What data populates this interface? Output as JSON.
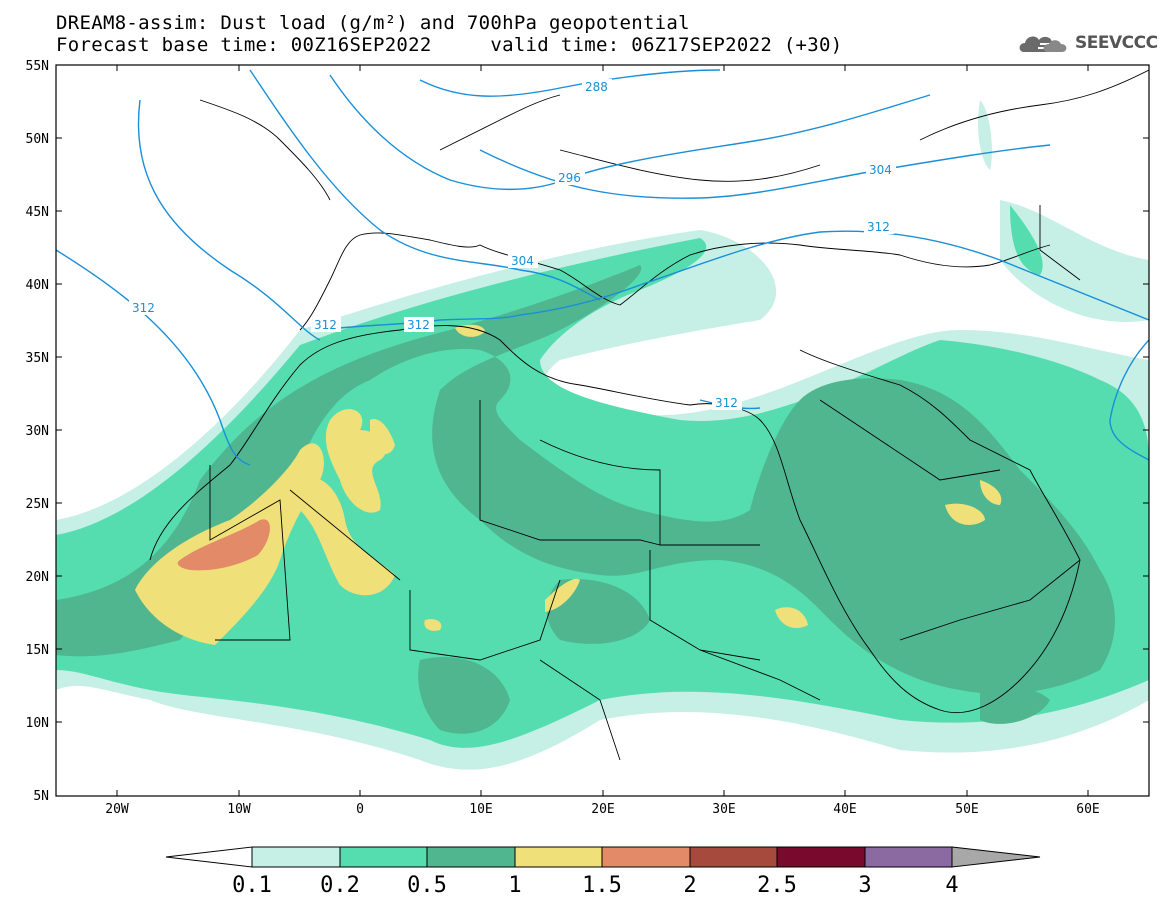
{
  "title_line1": "DREAM8-assim: Dust load (g/m²) and 700hPa geopotential",
  "title_line2": "Forecast base time: 00Z16SEP2022     valid time: 06Z17SEP2022 (+30)",
  "logo_text": "SEEVCCC",
  "map": {
    "lat_labels": [
      "55N",
      "50N",
      "45N",
      "40N",
      "35N",
      "30N",
      "25N",
      "20N",
      "15N",
      "10N",
      "5N"
    ],
    "lon_labels": [
      "20W",
      "10W",
      "0",
      "10E",
      "20E",
      "30E",
      "40E",
      "50E",
      "60E"
    ],
    "contour_labels": [
      "288",
      "296",
      "304",
      "304",
      "312",
      "312",
      "312",
      "312",
      "312"
    ],
    "contour_color": "#1a8fd8"
  },
  "colorbar": {
    "levels": [
      "0.1",
      "0.2",
      "0.5",
      "1",
      "1.5",
      "2",
      "2.5",
      "3",
      "4"
    ],
    "colors": [
      "#ffffff",
      "#c6efe6",
      "#55ddb0",
      "#4fb690",
      "#f0e07a",
      "#e38a68",
      "#a74a3e",
      "#7a0a2d",
      "#8a6aa0",
      "#a8a8a8"
    ]
  }
}
